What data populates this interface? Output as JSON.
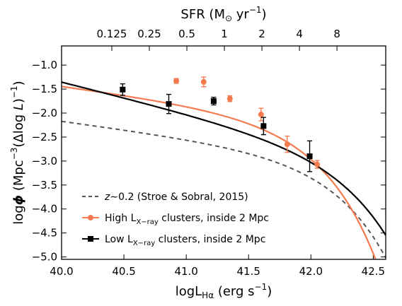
{
  "chart_data": {
    "type": "scatter",
    "xlabel": "logL",
    "xlabel_sub": "Hα",
    "xlabel_unit": " (erg s",
    "xlabel_exp": "−1",
    "xlabel_close": ")",
    "ylabel": "log",
    "ylabel_phi": "ϕ",
    "ylabel_unit": " (Mpc",
    "ylabel_exp1": "−3",
    "ylabel_mid": "(Δlog ",
    "ylabel_L": "L",
    "ylabel_close": ")",
    "ylabel_exp2": "−1",
    "ylabel_end": ")",
    "top_axis_label": "SFR (M",
    "top_axis_sun": "⊙",
    "top_axis_unit": " yr",
    "top_axis_exp": "−1",
    "top_axis_close": ")",
    "xlim": [
      40.0,
      42.6
    ],
    "ylim": [
      -5.05,
      -0.6
    ],
    "x_ticks": [
      40.0,
      40.5,
      41.0,
      41.5,
      42.0,
      42.5
    ],
    "x_tick_labels": [
      "40.0",
      "40.5",
      "41.0",
      "41.5",
      "42.0",
      "42.5"
    ],
    "y_ticks": [
      -1.0,
      -1.5,
      -2.0,
      -2.5,
      -3.0,
      -3.5,
      -4.0,
      -4.5,
      -5.0
    ],
    "y_tick_labels": [
      "−1.0",
      "−1.5",
      "−2.0",
      "−2.5",
      "−3.0",
      "−3.5",
      "−4.0",
      "−4.5",
      "−5.0"
    ],
    "top_ticks": [
      40.403,
      40.704,
      41.005,
      41.306,
      41.607,
      41.908,
      42.209
    ],
    "top_tick_labels": [
      "0.125",
      "0.25",
      "0.5",
      "1",
      "2",
      "4",
      "8"
    ],
    "series": [
      {
        "name": "High L",
        "name_sub": "X−ray",
        "name_rest": " clusters, inside 2 Mpc",
        "color": "#f47b50",
        "marker": "circle",
        "points": [
          {
            "x": 40.92,
            "y": -1.33,
            "err": 0.05
          },
          {
            "x": 41.14,
            "y": -1.35,
            "err": 0.1
          },
          {
            "x": 41.35,
            "y": -1.7,
            "err": 0.06
          },
          {
            "x": 41.6,
            "y": -2.03,
            "err": 0.13
          },
          {
            "x": 41.81,
            "y": -2.65,
            "err": 0.17
          },
          {
            "x": 42.05,
            "y": -3.07,
            "err": 0.08
          }
        ],
        "fit": {
          "phi_star": -2.04,
          "l_star": 41.72,
          "alpha": -1.35
        }
      },
      {
        "name": "Low L",
        "name_sub": "X−ray",
        "name_rest": " clusters, inside 2 Mpc",
        "color": "#000000",
        "marker": "square",
        "points": [
          {
            "x": 40.49,
            "y": -1.51,
            "err": 0.12
          },
          {
            "x": 40.86,
            "y": -1.81,
            "err": 0.2
          },
          {
            "x": 41.22,
            "y": -1.75,
            "err": 0.08
          },
          {
            "x": 41.62,
            "y": -2.27,
            "err": 0.18
          },
          {
            "x": 41.99,
            "y": -2.9,
            "err": 0.32
          }
        ],
        "fit": {
          "phi_star": -2.69,
          "l_star": 42.06,
          "alpha": -1.65
        }
      },
      {
        "name": "z∼0.2 (Stroe & Sobral, 2015)",
        "name_italic": "z",
        "name_rest": "∼0.2 (Stroe & Sobral, 2015)",
        "color": "#555555",
        "marker": "none",
        "dashed": true,
        "fit": {
          "phi_star": -2.85,
          "l_star": 41.95,
          "alpha": -1.35
        }
      }
    ]
  }
}
